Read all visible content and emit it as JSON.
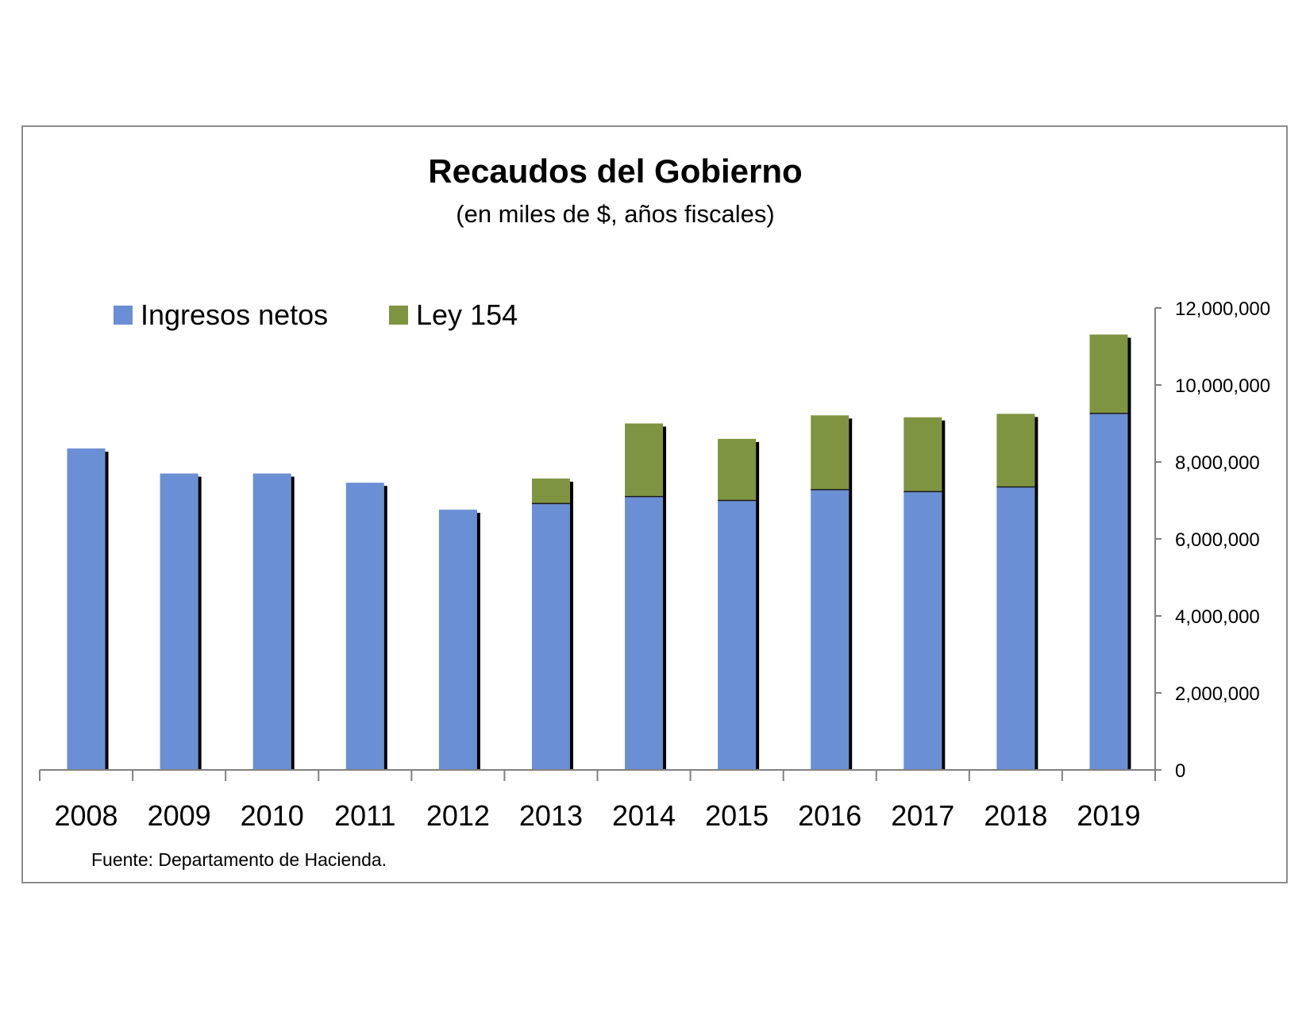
{
  "chart_data": {
    "type": "bar",
    "stacked": true,
    "title": "Recaudos del Gobierno",
    "subtitle": "(en miles de $, años fiscales)",
    "categories": [
      "2008",
      "2009",
      "2010",
      "2011",
      "2012",
      "2013",
      "2014",
      "2015",
      "2016",
      "2017",
      "2018",
      "2019"
    ],
    "series": [
      {
        "name": "Ingresos netos",
        "color": "#6a8fd4",
        "values": [
          8350000,
          7700000,
          7700000,
          7460000,
          6760000,
          6920000,
          7100000,
          7000000,
          7280000,
          7230000,
          7350000,
          9260000
        ]
      },
      {
        "name": "Ley 154",
        "color": "#7f9440",
        "values": [
          0,
          0,
          0,
          0,
          0,
          650000,
          1900000,
          1600000,
          1930000,
          1930000,
          1900000,
          2050000
        ]
      }
    ],
    "ylim": [
      0,
      12000000
    ],
    "yticks": [
      "0",
      "2,000,000",
      "4,000,000",
      "6,000,000",
      "8,000,000",
      "10,000,000",
      "12,000,000"
    ],
    "ytick_values": [
      0,
      2000000,
      4000000,
      6000000,
      8000000,
      10000000,
      12000000
    ],
    "y_axis_side": "right",
    "legend_position": "top-left",
    "grid": false,
    "source": "Fuente: Departamento de Hacienda."
  }
}
